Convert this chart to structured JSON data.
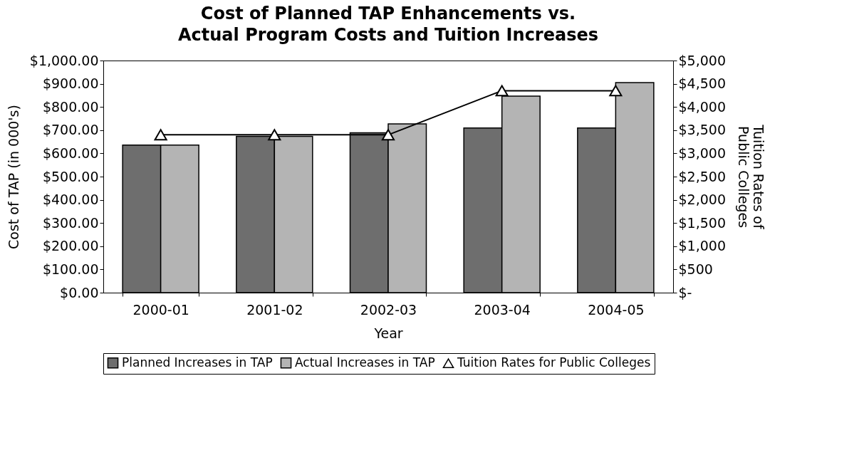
{
  "chart_data": {
    "type": "bar",
    "title": "Cost of Planned TAP Enhancements vs. Actual Program Costs and Tuition Increases",
    "xlabel": "Year",
    "ylabel": "Cost of TAP (in 000's)",
    "y2label": "Tuition Rates of Public Colleges",
    "categories": [
      "2000-01",
      "2001-02",
      "2002-03",
      "2003-04",
      "2004-05"
    ],
    "series": [
      {
        "name": "Planned Increases in TAP",
        "color": "#6e6e6e",
        "values": [
          636,
          673,
          689,
          709,
          709
        ]
      },
      {
        "name": "Actual Increases in TAP",
        "color": "#b4b4b4",
        "values": [
          636,
          673,
          727,
          847,
          905
        ]
      },
      {
        "name": "Tuition Rates for Public Colleges",
        "type": "line",
        "axis": "y2",
        "color": "#000000",
        "marker": "triangle",
        "values": [
          3400,
          3400,
          3400,
          4350,
          4350
        ]
      }
    ],
    "ylim": [
      0,
      1000
    ],
    "yticks": [
      {
        "value": 0,
        "label": "$0.00"
      },
      {
        "value": 100,
        "label": "$100.00"
      },
      {
        "value": 200,
        "label": "$200.00"
      },
      {
        "value": 300,
        "label": "$300.00"
      },
      {
        "value": 400,
        "label": "$400.00"
      },
      {
        "value": 500,
        "label": "$500.00"
      },
      {
        "value": 600,
        "label": "$600.00"
      },
      {
        "value": 700,
        "label": "$700.00"
      },
      {
        "value": 800,
        "label": "$800.00"
      },
      {
        "value": 900,
        "label": "$900.00"
      },
      {
        "value": 1000,
        "label": "$1,000.00"
      }
    ],
    "y2lim": [
      0,
      5000
    ],
    "y2ticks": [
      {
        "value": 0,
        "label": "$-"
      },
      {
        "value": 500,
        "label": "$500"
      },
      {
        "value": 1000,
        "label": "$1,000"
      },
      {
        "value": 1500,
        "label": "$1,500"
      },
      {
        "value": 2000,
        "label": "$2,000"
      },
      {
        "value": 2500,
        "label": "$2,500"
      },
      {
        "value": 3000,
        "label": "$3,000"
      },
      {
        "value": 3500,
        "label": "$3,500"
      },
      {
        "value": 4000,
        "label": "$4,000"
      },
      {
        "value": 4500,
        "label": "$4,500"
      },
      {
        "value": 5000,
        "label": "$5,000"
      }
    ],
    "grid": false,
    "legend": "bottom"
  }
}
